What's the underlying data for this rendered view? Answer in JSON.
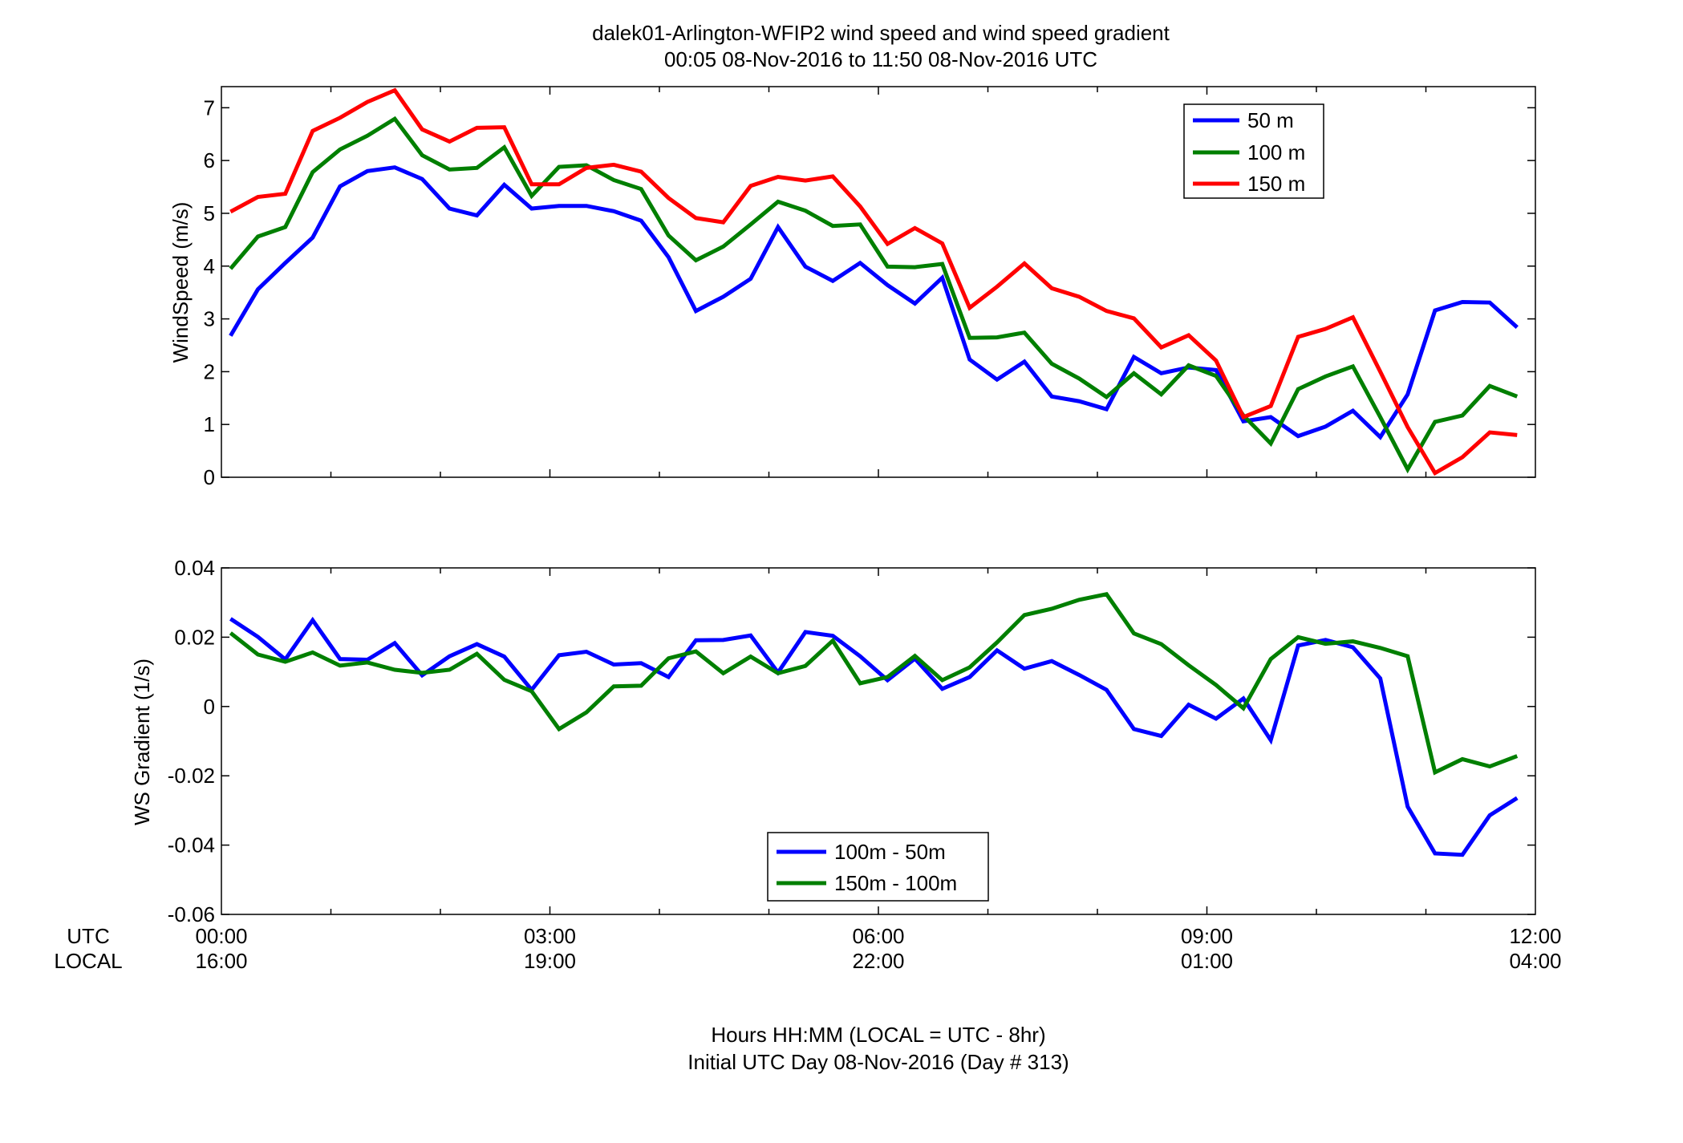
{
  "header": {
    "title": "dalek01-Arlington-WFIP2  wind speed and wind speed gradient",
    "subtitle": "00:05 08-Nov-2016 to 11:50 08-Nov-2016  UTC"
  },
  "footer": {
    "line1": "Hours HH:MM  (LOCAL = UTC - 8hr)",
    "line2": "Initial UTC Day 08-Nov-2016 (Day # 313)"
  },
  "time_axis": {
    "row_label_utc": "UTC",
    "row_label_local": "LOCAL",
    "ticks_utc": [
      "00:00",
      "03:00",
      "06:00",
      "09:00",
      "12:00"
    ],
    "ticks_local": [
      "16:00",
      "19:00",
      "22:00",
      "01:00",
      "04:00"
    ]
  },
  "chart_data": [
    {
      "type": "line",
      "title": "",
      "xlabel": "",
      "ylabel": "WindSpeed (m/s)",
      "xlim": [
        0,
        12
      ],
      "ylim": [
        0,
        7.4
      ],
      "yticks": [
        0,
        1,
        2,
        3,
        4,
        5,
        6,
        7
      ],
      "ytick_labels": [
        "0",
        "1",
        "2",
        "3",
        "4",
        "5",
        "6",
        "7"
      ],
      "legend_position": "top-right",
      "grid": false,
      "x_start_hours": 0.0833,
      "x_step_hours": 0.25,
      "series": [
        {
          "name": "50 m",
          "color": "#0000ff",
          "values": [
            2.68,
            3.56,
            4.06,
            4.54,
            5.51,
            5.8,
            5.87,
            5.65,
            5.09,
            4.96,
            5.54,
            5.09,
            5.14,
            5.14,
            5.04,
            4.86,
            4.17,
            3.15,
            3.42,
            3.76,
            4.74,
            3.99,
            3.72,
            4.06,
            3.64,
            3.29,
            3.78,
            2.23,
            1.85,
            2.19,
            1.53,
            1.44,
            1.29,
            2.28,
            1.97,
            2.08,
            2.03,
            1.06,
            1.14,
            0.78,
            0.96,
            1.26,
            0.76,
            1.57,
            3.16,
            3.32,
            3.31,
            2.84
          ]
        },
        {
          "name": "100 m",
          "color": "#007f00",
          "values": [
            3.95,
            4.56,
            4.74,
            5.78,
            6.21,
            6.47,
            6.79,
            6.1,
            5.83,
            5.86,
            6.25,
            5.33,
            5.88,
            5.91,
            5.63,
            5.46,
            4.58,
            4.11,
            4.37,
            4.79,
            5.22,
            5.05,
            4.76,
            4.79,
            3.99,
            3.98,
            4.04,
            2.64,
            2.65,
            2.74,
            2.15,
            1.87,
            1.52,
            1.97,
            1.57,
            2.12,
            1.92,
            1.17,
            0.64,
            1.67,
            1.91,
            2.1,
            1.14,
            0.15,
            1.05,
            1.17,
            1.73,
            1.53
          ]
        },
        {
          "name": "150 m",
          "color": "#ff0000",
          "values": [
            5.03,
            5.31,
            5.37,
            6.56,
            6.81,
            7.11,
            7.33,
            6.59,
            6.36,
            6.62,
            6.63,
            5.55,
            5.55,
            5.86,
            5.92,
            5.79,
            5.29,
            4.91,
            4.83,
            5.52,
            5.69,
            5.62,
            5.7,
            5.13,
            4.42,
            4.72,
            4.43,
            3.21,
            3.61,
            4.05,
            3.58,
            3.42,
            3.15,
            3.01,
            2.46,
            2.69,
            2.21,
            1.14,
            1.35,
            2.66,
            2.81,
            3.03,
            2.0,
            0.95,
            0.08,
            0.38,
            0.85,
            0.8
          ]
        }
      ]
    },
    {
      "type": "line",
      "title": "",
      "xlabel": "",
      "ylabel": "WS Gradient (1/s)",
      "xlim": [
        0,
        12
      ],
      "ylim": [
        -0.06,
        0.04
      ],
      "yticks": [
        -0.06,
        -0.04,
        -0.02,
        0,
        0.02,
        0.04
      ],
      "ytick_labels": [
        "-0.06",
        "-0.04",
        "-0.02",
        "0",
        "0.02",
        "0.04"
      ],
      "legend_position": "bottom-center",
      "grid": false,
      "x_start_hours": 0.0833,
      "x_step_hours": 0.25,
      "series": [
        {
          "name": "100m - 50m",
          "color": "#0000ff",
          "values": [
            0.0253,
            0.0201,
            0.0136,
            0.0249,
            0.0137,
            0.0135,
            0.0183,
            0.009,
            0.0145,
            0.018,
            0.0144,
            0.0048,
            0.0148,
            0.0158,
            0.0121,
            0.0125,
            0.0085,
            0.0191,
            0.0192,
            0.0205,
            0.0098,
            0.0215,
            0.0204,
            0.0145,
            0.0076,
            0.0138,
            0.0051,
            0.0085,
            0.0162,
            0.0109,
            0.0131,
            0.0091,
            0.0048,
            -0.0065,
            -0.0085,
            0.0005,
            -0.0035,
            0.0023,
            -0.0097,
            0.0176,
            0.0192,
            0.0171,
            0.0081,
            -0.0289,
            -0.0424,
            -0.0428,
            -0.0314,
            -0.0264
          ]
        },
        {
          "name": "150m - 100m",
          "color": "#007f00",
          "values": [
            0.0212,
            0.015,
            0.0129,
            0.0156,
            0.0118,
            0.0127,
            0.0106,
            0.0097,
            0.0106,
            0.0152,
            0.0077,
            0.0044,
            -0.0065,
            -0.0017,
            0.0058,
            0.006,
            0.0139,
            0.0159,
            0.0096,
            0.0144,
            0.0096,
            0.0117,
            0.019,
            0.0067,
            0.0085,
            0.0146,
            0.0076,
            0.0113,
            0.0185,
            0.0264,
            0.0282,
            0.0308,
            0.0324,
            0.0211,
            0.018,
            0.0119,
            0.0062,
            -0.0005,
            0.0137,
            0.02,
            0.0181,
            0.0188,
            0.0169,
            0.0145,
            -0.019,
            -0.0152,
            -0.0173,
            -0.0143
          ]
        }
      ]
    }
  ]
}
